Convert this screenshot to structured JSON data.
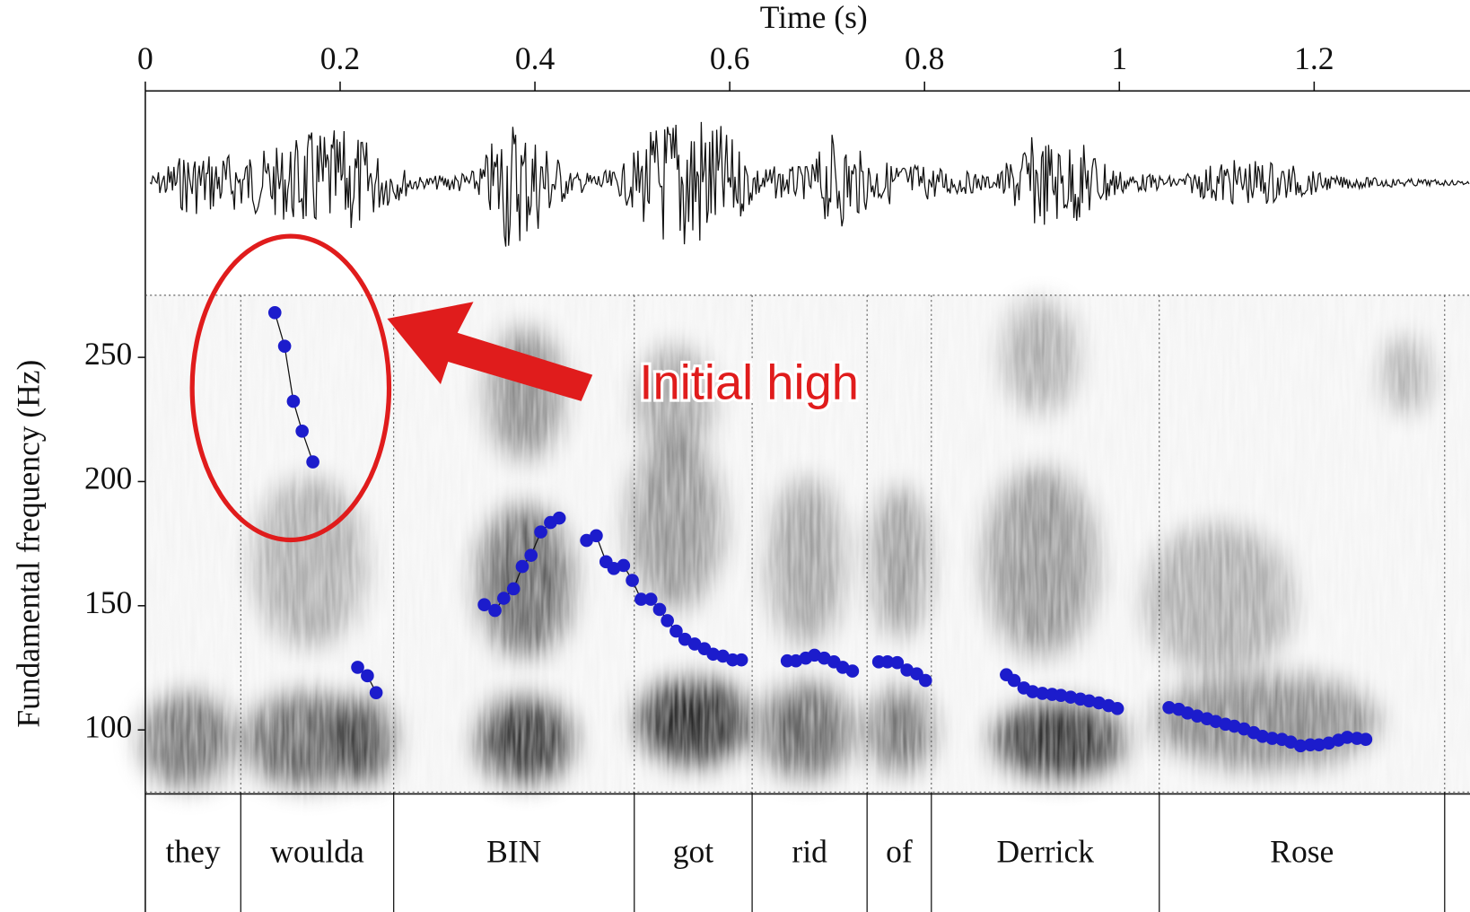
{
  "chart_data": {
    "type": "pitch-track",
    "xlabel": "Time (s)",
    "ylabel": "Fundamental frequency (Hz)",
    "xlim": [
      0,
      1.36
    ],
    "xticks": [
      0,
      0.2,
      0.4,
      0.6,
      0.8,
      1,
      1.2
    ],
    "ylim": [
      75,
      275
    ],
    "yticks": [
      100,
      150,
      200,
      250
    ],
    "series": [
      {
        "color": "#1c1ccc",
        "x": [
          0.133,
          0.143,
          0.152,
          0.161,
          0.172,
          null,
          0.218,
          0.228,
          0.237,
          null,
          0.348,
          0.359,
          0.368,
          0.378,
          0.387,
          0.396,
          0.406,
          0.416,
          0.425,
          null,
          0.453,
          0.463,
          0.473,
          0.481,
          0.491,
          0.5,
          0.509,
          0.519,
          0.528,
          0.536,
          0.545,
          0.554,
          0.564,
          0.574,
          0.583,
          0.593,
          0.603,
          0.612,
          null,
          0.659,
          0.668,
          0.678,
          0.687,
          0.697,
          0.707,
          0.716,
          0.726,
          null,
          0.753,
          0.762,
          0.772,
          0.782,
          0.792,
          0.801,
          null,
          0.884,
          0.892,
          0.902,
          0.911,
          0.921,
          0.931,
          0.94,
          0.95,
          0.96,
          0.969,
          0.979,
          0.989,
          0.998,
          null,
          1.051,
          1.061,
          1.07,
          1.08,
          1.09,
          1.099,
          1.109,
          1.118,
          1.128,
          1.138,
          1.147,
          1.157,
          1.167,
          1.176,
          1.186,
          1.196,
          1.205,
          1.215,
          1.225,
          1.234,
          1.244,
          1.253
        ],
        "values": [
          268.0,
          254.5,
          232.3,
          220.3,
          207.9,
          null,
          125.2,
          121.8,
          115.0,
          null,
          150.4,
          148.1,
          153.0,
          156.8,
          165.8,
          170.3,
          179.7,
          183.5,
          185.3,
          null,
          176.3,
          178.2,
          167.7,
          165.0,
          166.2,
          160.2,
          152.6,
          152.6,
          148.5,
          144.0,
          139.8,
          136.5,
          134.6,
          132.7,
          130.5,
          129.7,
          128.2,
          128.2,
          null,
          127.8,
          127.8,
          128.9,
          130.1,
          128.9,
          127.4,
          125.2,
          123.7,
          null,
          127.4,
          127.4,
          127.1,
          124.1,
          122.6,
          119.9,
          null,
          122.2,
          119.9,
          116.9,
          115.4,
          114.7,
          114.3,
          113.9,
          113.2,
          112.4,
          111.7,
          110.9,
          109.8,
          108.6,
          null,
          109.0,
          108.3,
          106.8,
          105.6,
          104.5,
          103.4,
          102.3,
          101.5,
          100.4,
          98.9,
          97.4,
          96.6,
          96.2,
          95.1,
          93.6,
          94.0,
          94.0,
          94.7,
          95.9,
          97.0,
          96.6,
          96.2
        ]
      }
    ],
    "intervals": [
      {
        "label": "they",
        "start": 0,
        "end": 0.098
      },
      {
        "label": "woulda",
        "start": 0.098,
        "end": 0.255
      },
      {
        "label": "BIN",
        "start": 0.255,
        "end": 0.502
      },
      {
        "label": "got",
        "start": 0.502,
        "end": 0.623
      },
      {
        "label": "rid",
        "start": 0.623,
        "end": 0.741
      },
      {
        "label": "of",
        "start": 0.741,
        "end": 0.807
      },
      {
        "label": "Derrick",
        "start": 0.807,
        "end": 1.041
      },
      {
        "label": "Rose",
        "start": 1.041,
        "end": 1.334
      }
    ],
    "annotation": "Initial high"
  }
}
